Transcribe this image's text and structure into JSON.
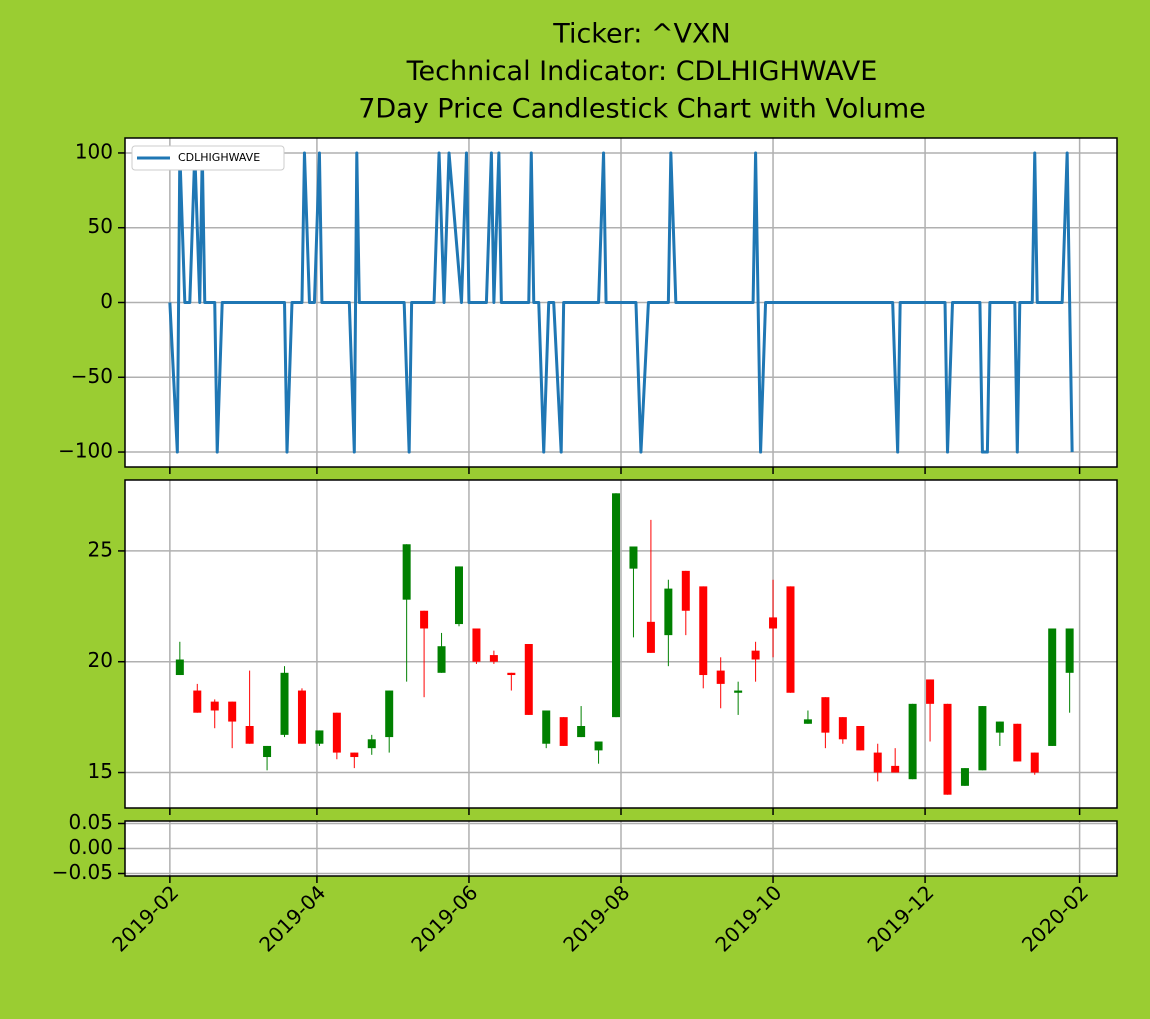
{
  "chart_data": [
    {
      "type": "line",
      "title": [
        "Ticker: ^VXN",
        "Technical Indicator: CDLHIGHWAVE",
        "7Day Price Candlestick Chart with Volume"
      ],
      "x": [
        "2019-02-01",
        "2019-02-04",
        "2019-02-05",
        "2019-02-07",
        "2019-02-09",
        "2019-02-11",
        "2019-02-13",
        "2019-02-14",
        "2019-02-15",
        "2019-02-19",
        "2019-02-20",
        "2019-02-22",
        "2019-03-19",
        "2019-03-20",
        "2019-03-22",
        "2019-03-26",
        "2019-03-27",
        "2019-03-29",
        "2019-03-31",
        "2019-04-02",
        "2019-04-03",
        "2019-04-14",
        "2019-04-16",
        "2019-04-17",
        "2019-04-18",
        "2019-05-06",
        "2019-05-08",
        "2019-05-09",
        "2019-05-18",
        "2019-05-20",
        "2019-05-22",
        "2019-05-24",
        "2019-05-29",
        "2019-05-31",
        "2019-06-01",
        "2019-06-08",
        "2019-06-10",
        "2019-06-11",
        "2019-06-13",
        "2019-06-14",
        "2019-06-25",
        "2019-06-26",
        "2019-06-27",
        "2019-06-29",
        "2019-07-01",
        "2019-07-03",
        "2019-07-05",
        "2019-07-08",
        "2019-07-09",
        "2019-07-23",
        "2019-07-25",
        "2019-07-26",
        "2019-08-07",
        "2019-08-09",
        "2019-08-12",
        "2019-08-20",
        "2019-08-21",
        "2019-08-23",
        "2019-09-23",
        "2019-09-24",
        "2019-09-25",
        "2019-09-26",
        "2019-09-28",
        "2019-11-18",
        "2019-11-20",
        "2019-11-21",
        "2019-12-09",
        "2019-12-10",
        "2019-12-12",
        "2019-12-23",
        "2019-12-24",
        "2019-12-26",
        "2019-12-27",
        "2020-01-06",
        "2020-01-07",
        "2020-01-08",
        "2020-01-13",
        "2020-01-14",
        "2020-01-15",
        "2020-01-25",
        "2020-01-27",
        "2020-01-29"
      ],
      "series": [
        {
          "name": "CDLHIGHWAVE",
          "color": "#1f77b4",
          "values": [
            0,
            -100,
            100,
            0,
            0,
            100,
            0,
            100,
            0,
            0,
            -100,
            0,
            0,
            -100,
            0,
            0,
            100,
            0,
            0,
            100,
            0,
            0,
            -100,
            100,
            0,
            0,
            -100,
            0,
            0,
            100,
            0,
            100,
            0,
            100,
            0,
            0,
            100,
            0,
            100,
            0,
            0,
            100,
            0,
            0,
            -100,
            0,
            0,
            -100,
            0,
            0,
            100,
            0,
            0,
            -100,
            0,
            0,
            100,
            0,
            0,
            100,
            0,
            -100,
            0,
            0,
            -100,
            0,
            0,
            -100,
            0,
            0,
            -100,
            -100,
            0,
            0,
            -100,
            0,
            0,
            100,
            0,
            0,
            100,
            -100
          ]
        }
      ],
      "ylim": [
        -110,
        110
      ],
      "yticks": [
        100,
        50,
        0,
        {
          "value": -50,
          "label": "−50"
        },
        {
          "value": -100,
          "label": "−100"
        }
      ],
      "grid": true,
      "legend": "upper left"
    },
    {
      "type": "candlestick",
      "x": [
        "2019-02-05",
        "2019-02-12",
        "2019-02-19",
        "2019-02-26",
        "2019-03-05",
        "2019-03-12",
        "2019-03-19",
        "2019-03-26",
        "2019-04-02",
        "2019-04-09",
        "2019-04-16",
        "2019-04-23",
        "2019-04-30",
        "2019-05-07",
        "2019-05-14",
        "2019-05-21",
        "2019-05-28",
        "2019-06-04",
        "2019-06-11",
        "2019-06-18",
        "2019-06-25",
        "2019-07-02",
        "2019-07-09",
        "2019-07-16",
        "2019-07-23",
        "2019-07-30",
        "2019-08-06",
        "2019-08-13",
        "2019-08-20",
        "2019-08-27",
        "2019-09-03",
        "2019-09-10",
        "2019-09-17",
        "2019-09-24",
        "2019-10-01",
        "2019-10-08",
        "2019-10-15",
        "2019-10-22",
        "2019-10-29",
        "2019-11-05",
        "2019-11-12",
        "2019-11-19",
        "2019-11-26",
        "2019-12-03",
        "2019-12-10",
        "2019-12-17",
        "2019-12-24",
        "2019-12-31",
        "2020-01-07",
        "2020-01-14",
        "2020-01-21",
        "2020-01-28"
      ],
      "open": [
        19.4,
        18.7,
        18.2,
        18.2,
        17.1,
        15.7,
        16.7,
        18.7,
        16.3,
        17.7,
        15.9,
        16.1,
        16.6,
        22.8,
        22.3,
        19.5,
        21.7,
        21.5,
        20.3,
        19.5,
        20.8,
        16.3,
        17.5,
        16.6,
        16.0,
        17.5,
        24.2,
        21.8,
        21.2,
        24.1,
        23.4,
        19.6,
        18.6,
        20.5,
        22.0,
        23.4,
        17.2,
        18.4,
        17.5,
        17.1,
        15.9,
        15.3,
        14.7,
        19.2,
        18.1,
        14.4,
        15.1,
        16.8,
        17.2,
        15.9,
        16.2,
        19.5
      ],
      "high": [
        20.9,
        19.0,
        18.3,
        18.2,
        19.6,
        16.2,
        19.8,
        18.8,
        16.9,
        17.7,
        15.9,
        16.7,
        18.7,
        25.3,
        22.3,
        21.3,
        24.3,
        21.5,
        20.5,
        19.5,
        20.8,
        17.8,
        17.5,
        18.0,
        16.4,
        27.6,
        25.2,
        26.4,
        23.7,
        24.1,
        23.4,
        20.2,
        19.1,
        20.9,
        23.7,
        23.4,
        17.8,
        18.4,
        17.5,
        17.1,
        16.3,
        16.1,
        18.1,
        19.2,
        18.1,
        15.2,
        18.0,
        17.3,
        17.2,
        15.9,
        21.5,
        21.5
      ],
      "low": [
        19.4,
        17.7,
        17.0,
        16.1,
        16.3,
        15.1,
        16.6,
        16.3,
        16.2,
        15.6,
        15.2,
        15.8,
        15.9,
        19.1,
        18.4,
        19.5,
        21.6,
        19.9,
        19.9,
        18.7,
        17.6,
        16.1,
        16.2,
        16.6,
        15.4,
        17.5,
        21.1,
        20.4,
        19.8,
        21.2,
        18.8,
        17.9,
        17.6,
        19.1,
        20.2,
        18.6,
        17.2,
        16.1,
        16.3,
        16.0,
        14.6,
        15.0,
        14.7,
        16.4,
        14.0,
        14.4,
        15.1,
        16.2,
        15.5,
        14.9,
        16.2,
        17.7
      ],
      "close": [
        20.1,
        17.7,
        17.8,
        17.3,
        16.3,
        16.2,
        19.5,
        16.3,
        16.9,
        15.9,
        15.7,
        16.5,
        18.7,
        25.3,
        21.5,
        20.7,
        24.3,
        20.0,
        20.0,
        19.4,
        17.6,
        17.8,
        16.2,
        17.1,
        16.4,
        27.6,
        25.2,
        20.4,
        23.3,
        22.3,
        19.4,
        19.0,
        18.7,
        20.1,
        21.5,
        18.6,
        17.4,
        16.8,
        16.5,
        16.0,
        15.0,
        15.0,
        18.1,
        18.1,
        14.0,
        15.2,
        18.0,
        17.3,
        15.5,
        15.0,
        21.5,
        21.5
      ],
      "up_color": "green",
      "down_color": "red",
      "ylim": [
        13.4,
        28.2
      ],
      "yticks": [
        15,
        20,
        25
      ],
      "grid": true
    },
    {
      "type": "bar",
      "x": [],
      "values": [],
      "xlim": [
        "2019-01-14",
        "2020-02-16"
      ],
      "xticks": [
        {
          "value": "2019-02-01",
          "label": "2019-02"
        },
        {
          "value": "2019-04-01",
          "label": "2019-04"
        },
        {
          "value": "2019-06-01",
          "label": "2019-06"
        },
        {
          "value": "2019-08-01",
          "label": "2019-08"
        },
        {
          "value": "2019-10-01",
          "label": "2019-10"
        },
        {
          "value": "2019-12-01",
          "label": "2019-12"
        },
        {
          "value": "2020-02-01",
          "label": "2020-02"
        }
      ],
      "ylim": [
        -0.055,
        0.055
      ],
      "yticks": [
        {
          "value": 0.05,
          "label": "0.05"
        },
        {
          "value": 0,
          "label": "0.00"
        },
        {
          "value": -0.05,
          "label": "−0.05"
        }
      ],
      "grid": true
    }
  ]
}
